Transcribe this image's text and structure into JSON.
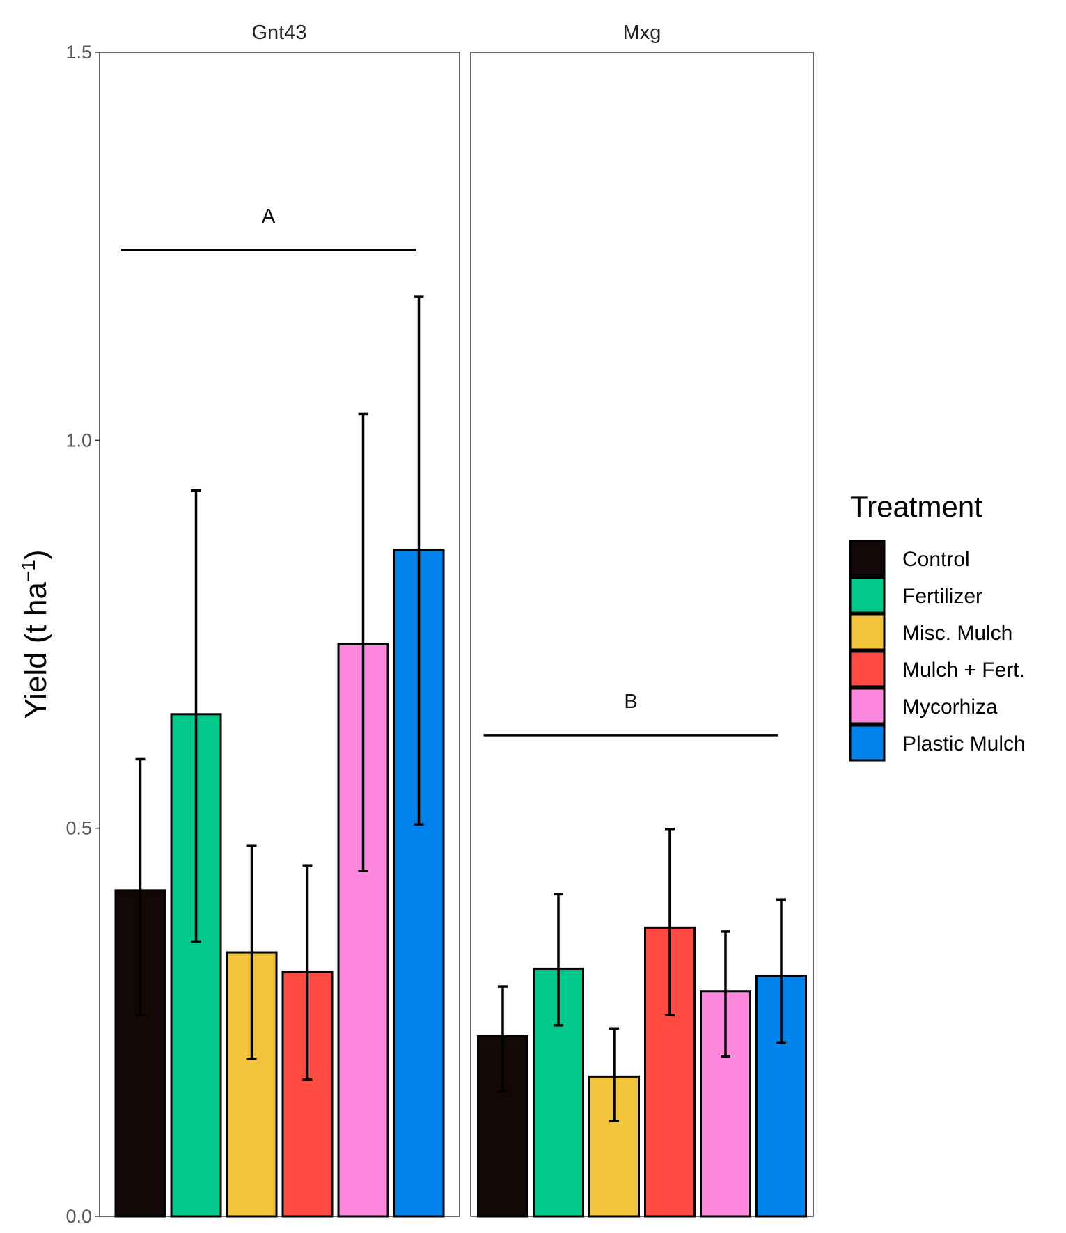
{
  "chart_data": {
    "type": "bar",
    "facets": [
      "Gnt43",
      "Mxg"
    ],
    "categories": [
      "Control",
      "Fertilizer",
      "Misc. Mulch",
      "Mulch + Fert.",
      "Mycorhiza",
      "Plastic Mulch"
    ],
    "series": [
      {
        "facet": "Gnt43",
        "values": [
          0.42,
          0.647,
          0.34,
          0.315,
          0.737,
          0.859
        ],
        "error_lower": [
          0.259,
          0.354,
          0.203,
          0.176,
          0.445,
          0.505
        ],
        "error_upper": [
          0.589,
          0.935,
          0.478,
          0.452,
          1.034,
          1.185
        ]
      },
      {
        "facet": "Mxg",
        "values": [
          0.232,
          0.319,
          0.18,
          0.372,
          0.29,
          0.31
        ],
        "error_lower": [
          0.161,
          0.246,
          0.123,
          0.259,
          0.206,
          0.224
        ],
        "error_upper": [
          0.296,
          0.415,
          0.242,
          0.499,
          0.367,
          0.408
        ]
      }
    ],
    "colors": [
      "#130807",
      "#00c98b",
      "#f1c43c",
      "#ff4b42",
      "#ff88df",
      "#0083ea"
    ],
    "annotations": [
      {
        "facet": "Gnt43",
        "label": "A",
        "y": 1.245
      },
      {
        "facet": "Mxg",
        "label": "B",
        "y": 0.62
      }
    ],
    "ylabel": "Yield (t ha",
    "ylabel_superscript": "−1",
    "ylabel_suffix": ")",
    "ylim": [
      0,
      1.5
    ],
    "yticks": [
      0.0,
      0.5,
      1.0,
      1.5
    ],
    "ytick_labels": [
      "0.0",
      "0.5",
      "1.0",
      "1.5"
    ],
    "grid": false,
    "legend": {
      "title": "Treatment",
      "placement": "right",
      "items": [
        "Control",
        "Fertilizer",
        "Misc. Mulch",
        "Mulch + Fert.",
        "Mycorhiza",
        "Plastic Mulch"
      ]
    }
  }
}
